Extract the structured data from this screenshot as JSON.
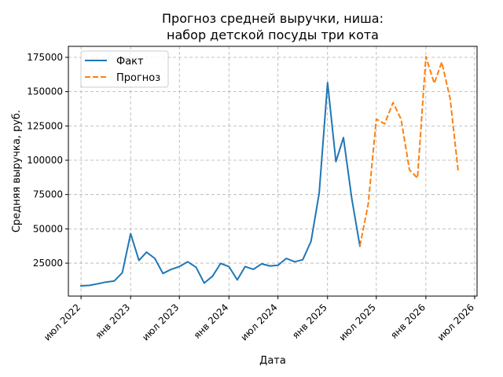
{
  "chart_data": {
    "type": "line",
    "title": [
      "Прогноз средней выручки, ниша:",
      "набор детской посуды три кота"
    ],
    "xlabel": "Дата",
    "ylabel": "Средняя выручка, руб.",
    "x_ticks": [
      {
        "label": "июл 2022",
        "date": "2022-07-01"
      },
      {
        "label": "янв 2023",
        "date": "2023-01-01"
      },
      {
        "label": "июл 2023",
        "date": "2023-07-01"
      },
      {
        "label": "янв 2024",
        "date": "2024-01-01"
      },
      {
        "label": "июл 2024",
        "date": "2024-07-01"
      },
      {
        "label": "янв 2025",
        "date": "2025-01-01"
      },
      {
        "label": "июл 2025",
        "date": "2025-07-01"
      },
      {
        "label": "янв 2026",
        "date": "2026-01-01"
      },
      {
        "label": "июл 2026",
        "date": "2026-07-01"
      }
    ],
    "y_ticks": [
      {
        "label": "25000",
        "value": 25000
      },
      {
        "label": "50000",
        "value": 50000
      },
      {
        "label": "75000",
        "value": 75000
      },
      {
        "label": "100000",
        "value": 100000
      },
      {
        "label": "125000",
        "value": 125000
      },
      {
        "label": "150000",
        "value": 150000
      },
      {
        "label": "175000",
        "value": 175000
      }
    ],
    "xlim": [
      "2022-05-15",
      "2026-07-10"
    ],
    "ylim": [
      1000,
      183000
    ],
    "grid": true,
    "legend_position": "top-left",
    "series": [
      {
        "name": "Факт",
        "color": "#1f77b4",
        "dash": "solid",
        "points": [
          {
            "x": "2022-07-01",
            "y": 8500
          },
          {
            "x": "2022-08-01",
            "y": 8800
          },
          {
            "x": "2022-09-01",
            "y": 10000
          },
          {
            "x": "2022-10-01",
            "y": 11200
          },
          {
            "x": "2022-11-01",
            "y": 12000
          },
          {
            "x": "2022-12-01",
            "y": 18000
          },
          {
            "x": "2023-01-01",
            "y": 46500
          },
          {
            "x": "2023-02-01",
            "y": 27000
          },
          {
            "x": "2023-03-01",
            "y": 33000
          },
          {
            "x": "2023-04-01",
            "y": 28500
          },
          {
            "x": "2023-05-01",
            "y": 17500
          },
          {
            "x": "2023-06-01",
            "y": 20500
          },
          {
            "x": "2023-07-01",
            "y": 22500
          },
          {
            "x": "2023-08-01",
            "y": 26000
          },
          {
            "x": "2023-09-01",
            "y": 22000
          },
          {
            "x": "2023-10-01",
            "y": 10500
          },
          {
            "x": "2023-11-01",
            "y": 15500
          },
          {
            "x": "2023-12-01",
            "y": 24800
          },
          {
            "x": "2024-01-01",
            "y": 22500
          },
          {
            "x": "2024-02-01",
            "y": 12800
          },
          {
            "x": "2024-03-01",
            "y": 22500
          },
          {
            "x": "2024-04-01",
            "y": 20500
          },
          {
            "x": "2024-05-01",
            "y": 24500
          },
          {
            "x": "2024-06-01",
            "y": 23000
          },
          {
            "x": "2024-07-01",
            "y": 23500
          },
          {
            "x": "2024-08-01",
            "y": 28500
          },
          {
            "x": "2024-09-01",
            "y": 26000
          },
          {
            "x": "2024-10-01",
            "y": 27500
          },
          {
            "x": "2024-11-01",
            "y": 41000
          },
          {
            "x": "2024-12-01",
            "y": 76000
          },
          {
            "x": "2025-01-01",
            "y": 156500
          },
          {
            "x": "2025-02-01",
            "y": 99000
          },
          {
            "x": "2025-03-01",
            "y": 116500
          },
          {
            "x": "2025-04-01",
            "y": 72000
          },
          {
            "x": "2025-05-01",
            "y": 37500
          }
        ]
      },
      {
        "name": "Прогноз",
        "color": "#ff7f0e",
        "dash": "dashed",
        "points": [
          {
            "x": "2025-05-01",
            "y": 37500
          },
          {
            "x": "2025-06-01",
            "y": 68000
          },
          {
            "x": "2025-07-01",
            "y": 130000
          },
          {
            "x": "2025-08-01",
            "y": 126500
          },
          {
            "x": "2025-09-01",
            "y": 142000
          },
          {
            "x": "2025-10-01",
            "y": 130000
          },
          {
            "x": "2025-11-01",
            "y": 93000
          },
          {
            "x": "2025-12-01",
            "y": 87000
          },
          {
            "x": "2026-01-01",
            "y": 175500
          },
          {
            "x": "2026-02-01",
            "y": 156000
          },
          {
            "x": "2026-03-01",
            "y": 171500
          },
          {
            "x": "2026-04-01",
            "y": 145000
          },
          {
            "x": "2026-05-01",
            "y": 92000
          }
        ]
      }
    ]
  }
}
